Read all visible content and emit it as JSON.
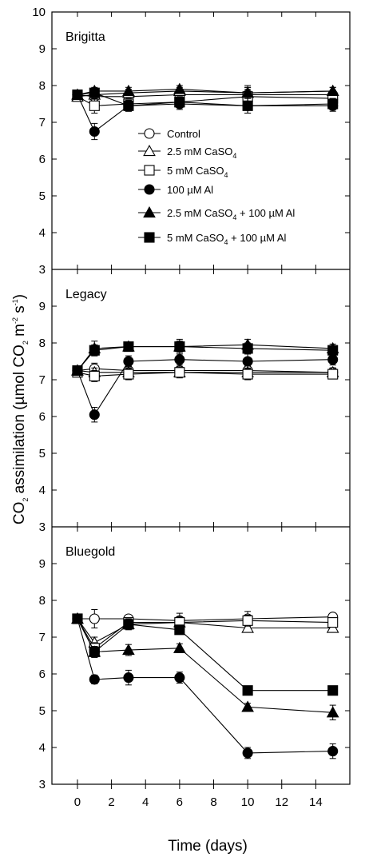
{
  "chart_data": {
    "type": "line",
    "xlabel": "Time (days)",
    "ylabel": {
      "pre": "CO",
      "sub": "2",
      "mid": " assimilation (µmol CO",
      "sub2": "2",
      "mid2": " m",
      "sup": "-2",
      "mid3": " s",
      "sup2": "-1",
      "post": ")"
    },
    "xlim": [
      -1.5,
      16
    ],
    "x_ticks": [
      0,
      2,
      4,
      6,
      8,
      10,
      12,
      14
    ],
    "ylim": [
      3,
      10
    ],
    "y_ticks": [
      3,
      4,
      5,
      6,
      7,
      8,
      9,
      10
    ],
    "x": [
      0,
      1,
      3,
      6,
      10,
      15
    ],
    "series_styles": [
      {
        "marker": "circle",
        "fill": "#ffffff"
      },
      {
        "marker": "triangle",
        "fill": "#ffffff"
      },
      {
        "marker": "square",
        "fill": "#ffffff"
      },
      {
        "marker": "circle",
        "fill": "#000000"
      },
      {
        "marker": "triangle",
        "fill": "#000000"
      },
      {
        "marker": "square",
        "fill": "#000000"
      }
    ],
    "legend": [
      {
        "pre": "Control",
        "sub": "",
        "post": ""
      },
      {
        "pre": "2.5 mM CaSO",
        "sub": "4",
        "post": ""
      },
      {
        "pre": "5 mM CaSO",
        "sub": "4",
        "post": ""
      },
      {
        "pre": "100 µM Al",
        "sub": "",
        "post": ""
      },
      {
        "pre": "2.5 mM CaSO",
        "sub": "4",
        "post": " + 100 µM Al"
      },
      {
        "pre": "5 mM CaSO",
        "sub": "4",
        "post": " + 100 µM Al"
      }
    ],
    "panels": [
      {
        "label": "Brigitta",
        "series": [
          {
            "values": [
              7.75,
              7.7,
              7.7,
              7.75,
              7.75,
              7.75
            ],
            "err": [
              0.1,
              0.12,
              0.12,
              0.12,
              0.15,
              0.12
            ]
          },
          {
            "values": [
              7.7,
              7.75,
              7.8,
              7.85,
              7.8,
              7.85
            ],
            "err": [
              0.1,
              0.1,
              0.1,
              0.1,
              0.15,
              0.1
            ]
          },
          {
            "values": [
              7.7,
              7.45,
              7.5,
              7.55,
              7.7,
              7.65
            ],
            "err": [
              0.1,
              0.2,
              0.15,
              0.12,
              0.3,
              0.15
            ]
          },
          {
            "values": [
              7.75,
              6.75,
              7.45,
              7.5,
              7.45,
              7.45
            ],
            "err": [
              0.1,
              0.22,
              0.15,
              0.15,
              0.2,
              0.15
            ]
          },
          {
            "values": [
              7.75,
              7.85,
              7.85,
              7.9,
              7.8,
              7.85
            ],
            "err": [
              0.1,
              0.1,
              0.1,
              0.1,
              0.15,
              0.1
            ]
          },
          {
            "values": [
              7.75,
              7.8,
              7.45,
              7.55,
              7.45,
              7.5
            ],
            "err": [
              0.1,
              0.12,
              0.15,
              0.15,
              0.2,
              0.15
            ]
          }
        ]
      },
      {
        "label": "Legacy",
        "series": [
          {
            "values": [
              7.25,
              7.3,
              7.25,
              7.25,
              7.25,
              7.2
            ],
            "err": [
              0.08,
              0.15,
              0.12,
              0.1,
              0.12,
              0.12
            ]
          },
          {
            "values": [
              7.25,
              7.2,
              7.2,
              7.2,
              7.2,
              7.2
            ],
            "err": [
              0.08,
              0.12,
              0.12,
              0.12,
              0.12,
              0.12
            ]
          },
          {
            "values": [
              7.2,
              7.1,
              7.15,
              7.2,
              7.15,
              7.15
            ],
            "err": [
              0.08,
              0.15,
              0.15,
              0.15,
              0.15,
              0.12
            ]
          },
          {
            "values": [
              7.25,
              6.05,
              7.5,
              7.55,
              7.5,
              7.55
            ],
            "err": [
              0.08,
              0.2,
              0.15,
              0.15,
              0.2,
              0.15
            ]
          },
          {
            "values": [
              7.25,
              7.85,
              7.9,
              7.9,
              7.95,
              7.85
            ],
            "err": [
              0.08,
              0.2,
              0.1,
              0.2,
              0.15,
              0.12
            ]
          },
          {
            "values": [
              7.25,
              7.8,
              7.9,
              7.9,
              7.85,
              7.8
            ],
            "err": [
              0.08,
              0.15,
              0.1,
              0.15,
              0.15,
              0.12
            ]
          }
        ]
      },
      {
        "label": "Bluegold",
        "series": [
          {
            "values": [
              7.5,
              7.5,
              7.5,
              7.45,
              7.5,
              7.55
            ],
            "err": [
              0.08,
              0.25,
              0.1,
              0.2,
              0.2,
              0.1
            ]
          },
          {
            "values": [
              7.5,
              6.85,
              7.35,
              7.4,
              7.25,
              7.25
            ],
            "err": [
              0.08,
              0.15,
              0.12,
              0.12,
              0.12,
              0.12
            ]
          },
          {
            "values": [
              7.5,
              6.7,
              7.4,
              7.4,
              7.45,
              7.4
            ],
            "err": [
              0.08,
              0.15,
              0.12,
              0.15,
              0.15,
              0.12
            ]
          },
          {
            "values": [
              7.5,
              5.85,
              5.9,
              5.9,
              3.85,
              3.9
            ],
            "err": [
              0.08,
              0.12,
              0.2,
              0.15,
              0.15,
              0.2
            ]
          },
          {
            "values": [
              7.5,
              6.6,
              6.65,
              6.7,
              5.1,
              4.95
            ],
            "err": [
              0.08,
              0.15,
              0.15,
              0.12,
              0.1,
              0.2
            ]
          },
          {
            "values": [
              7.5,
              6.6,
              7.35,
              7.2,
              5.55,
              5.55
            ],
            "err": [
              0.08,
              0.15,
              0.15,
              0.12,
              0.1,
              0.1
            ]
          }
        ]
      }
    ]
  }
}
